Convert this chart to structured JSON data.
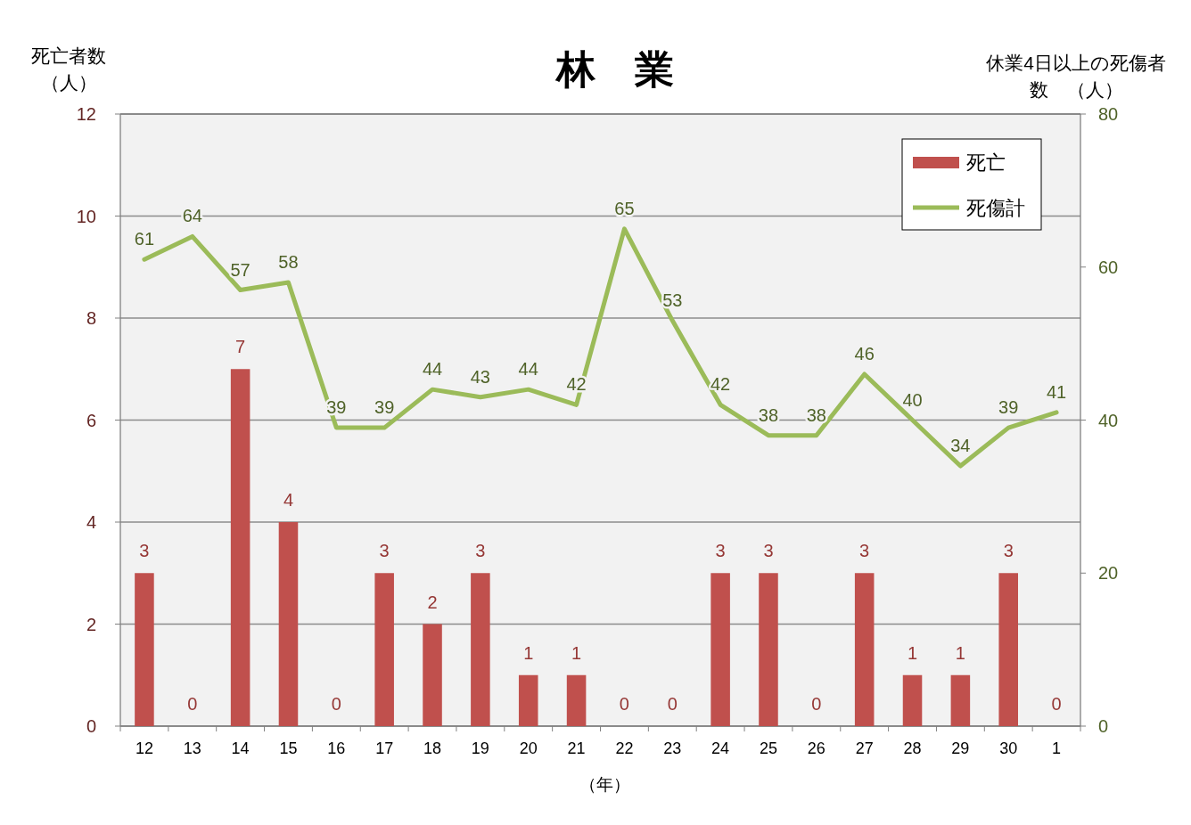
{
  "chart_data": {
    "type": "bar",
    "title": "林　業",
    "ylabel": "死亡者数（人）",
    "y2label": "休業4日以上の死傷者数　（人）",
    "xlabel": "（年）",
    "categories": [
      "12",
      "13",
      "14",
      "15",
      "16",
      "17",
      "18",
      "19",
      "20",
      "21",
      "22",
      "23",
      "24",
      "25",
      "26",
      "27",
      "28",
      "29",
      "30",
      "1"
    ],
    "series": [
      {
        "name": "死亡",
        "color": "#c0504d",
        "values": [
          3,
          0,
          7,
          4,
          0,
          3,
          2,
          3,
          1,
          1,
          0,
          0,
          3,
          3,
          0,
          3,
          1,
          1,
          3,
          0
        ]
      },
      {
        "name": "死傷計",
        "type": "line",
        "axis": "y2",
        "color": "#9bbb59",
        "values": [
          61,
          64,
          57,
          58,
          39,
          39,
          44,
          43,
          44,
          42,
          65,
          53,
          42,
          38,
          38,
          46,
          40,
          34,
          39,
          41
        ]
      }
    ],
    "ylim": [
      0,
      12
    ],
    "yticks": [
      0,
      2,
      4,
      6,
      8,
      10,
      12
    ],
    "y2lim": [
      0,
      80
    ],
    "y2ticks": [
      0,
      20,
      40,
      60,
      80
    ],
    "grid": "y",
    "legend": "top right",
    "data_labels": true
  }
}
